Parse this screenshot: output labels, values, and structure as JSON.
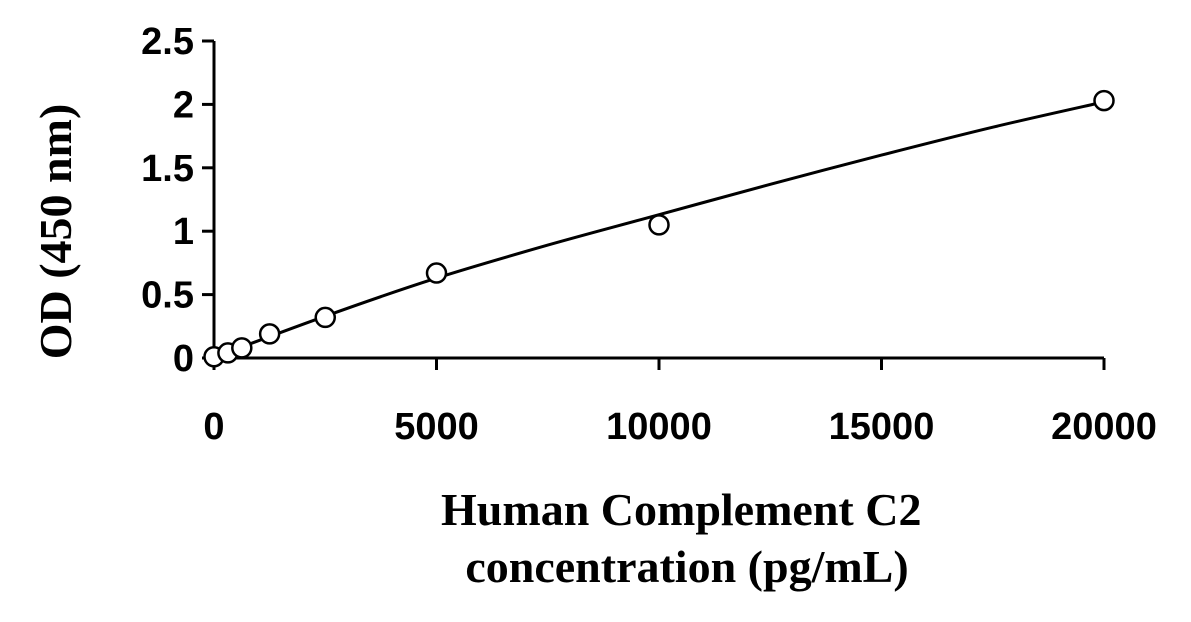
{
  "chart_data": {
    "type": "scatter",
    "xlabel_lines": [
      "Human Complement C2",
      "concentration (pg/mL)"
    ],
    "ylabel": "OD (450 nm)",
    "xlim": [
      0,
      20000
    ],
    "ylim": [
      0,
      2.5
    ],
    "x_ticks": [
      0,
      5000,
      10000,
      15000,
      20000
    ],
    "x_tick_labels": [
      "0",
      "5000",
      "10000",
      "15000",
      "20000"
    ],
    "y_ticks": [
      0,
      0.5,
      1,
      1.5,
      2,
      2.5
    ],
    "y_tick_labels": [
      "0",
      "0.5",
      "1",
      "1.5",
      "2",
      "2.5"
    ],
    "grid": false,
    "legend": "none",
    "series": [
      {
        "marker": "open-circle",
        "x": [
          0,
          312.5,
          625,
          1250,
          2500,
          5000,
          10000,
          20000
        ],
        "y": [
          0.01,
          0.04,
          0.08,
          0.19,
          0.32,
          0.67,
          1.05,
          2.03
        ]
      }
    ],
    "trendline": {
      "type": "polynomial-fit",
      "x": [
        0,
        2500,
        5000,
        7500,
        10000,
        12500,
        15000,
        17500,
        20000
      ],
      "y": [
        0.005,
        0.33,
        0.63,
        0.89,
        1.13,
        1.37,
        1.6,
        1.82,
        2.02
      ]
    }
  }
}
